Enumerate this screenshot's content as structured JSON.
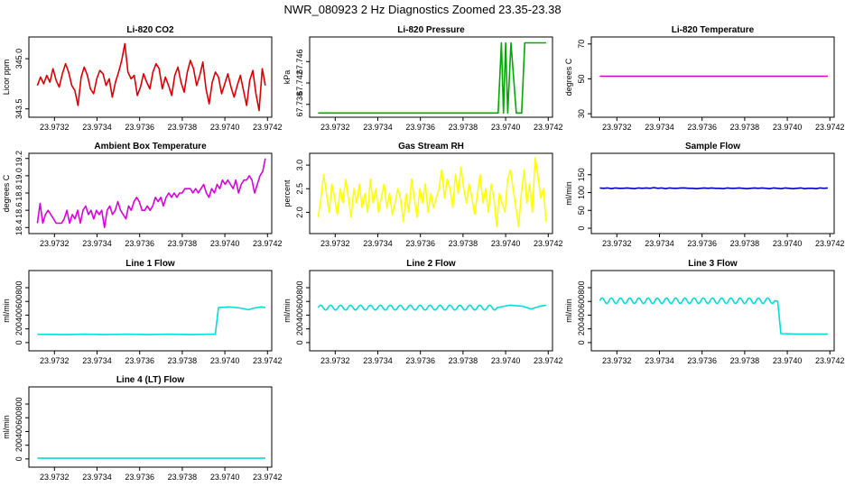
{
  "figure_title": "NWR_080923  2 Hz Diagnostics Zoomed 23.35-23.38",
  "chart_data": [
    {
      "type": "line",
      "title": "Li-820 CO2",
      "ylabel": "Licor ppm",
      "color": "#dd0000",
      "xlim": [
        23.97308,
        23.97422
      ],
      "x_ticks": [
        "23.9732",
        "23.9734",
        "23.9736",
        "23.9738",
        "23.9740",
        "23.9742"
      ],
      "ylim": [
        343.25,
        345.65
      ],
      "y_ticks": [
        "343.5",
        "345.0"
      ],
      "x_start": 23.97312,
      "x_end": 23.97419,
      "values": [
        344.2,
        344.45,
        344.25,
        344.5,
        344.3,
        344.7,
        344.35,
        344.15,
        344.55,
        344.85,
        344.6,
        344.2,
        344.05,
        343.6,
        344.45,
        344.75,
        344.5,
        344.1,
        343.95,
        344.4,
        344.65,
        344.55,
        344.2,
        344.4,
        343.85,
        344.3,
        344.6,
        344.95,
        345.45,
        344.6,
        344.4,
        344.5,
        343.9,
        344.15,
        344.55,
        344.3,
        344.1,
        344.6,
        344.85,
        344.7,
        344.1,
        344.45,
        344.2,
        343.9,
        344.5,
        344.75,
        344.3,
        344.0,
        344.6,
        344.95,
        344.7,
        344.2,
        344.5,
        344.9,
        344.1,
        343.65,
        344.3,
        344.6,
        344.45,
        343.95,
        344.25,
        344.55,
        344.15,
        343.85,
        344.2,
        344.5,
        344.05,
        343.6,
        344.35,
        344.65,
        343.95,
        343.45,
        344.7,
        344.2
      ]
    },
    {
      "type": "line",
      "title": "Li-820 Pressure",
      "ylabel": "kPa",
      "color": "#00aa00",
      "xlim": [
        23.97308,
        23.97422
      ],
      "x_ticks": [
        "23.9732",
        "23.9734",
        "23.9736",
        "23.9738",
        "23.9740",
        "23.9742"
      ],
      "ylim": [
        67.7356,
        67.7506
      ],
      "y_ticks": [
        "67.738",
        "67.742",
        "67.746"
      ],
      "points": [
        [
          23.97312,
          67.7364
        ],
        [
          23.973965,
          67.7364
        ],
        [
          23.97398,
          67.7495
        ],
        [
          23.97399,
          67.7364
        ],
        [
          23.974,
          67.7495
        ],
        [
          23.97401,
          67.7364
        ],
        [
          23.974025,
          67.7495
        ],
        [
          23.97405,
          67.7364
        ],
        [
          23.974075,
          67.7364
        ],
        [
          23.97409,
          67.7495
        ],
        [
          23.97419,
          67.7495
        ]
      ]
    },
    {
      "type": "line",
      "title": "Li-820 Temperature",
      "ylabel": "degrees C",
      "color": "#cc00cc",
      "xlim": [
        23.97308,
        23.97422
      ],
      "x_ticks": [
        "23.9732",
        "23.9734",
        "23.9736",
        "23.9738",
        "23.9740",
        "23.9742"
      ],
      "ylim": [
        28,
        74
      ],
      "y_ticks": [
        "30",
        "50",
        "70"
      ],
      "points": [
        [
          23.97312,
          51.5
        ],
        [
          23.97419,
          51.5
        ]
      ]
    },
    {
      "type": "line",
      "title": "Ambient Box Temperature",
      "ylabel": "degrees C",
      "color": "#dd00dd",
      "xlim": [
        23.97308,
        23.97422
      ],
      "x_ticks": [
        "23.9732",
        "23.9734",
        "23.9736",
        "23.9738",
        "23.9740",
        "23.9742"
      ],
      "ylim": [
        18.33,
        19.26
      ],
      "y_ticks": [
        "18.4",
        "18.6",
        "18.8",
        "19.0",
        "19.2"
      ],
      "x_start": 23.97312,
      "x_end": 23.97419,
      "values": [
        18.45,
        18.68,
        18.45,
        18.55,
        18.6,
        18.55,
        18.5,
        18.45,
        18.45,
        18.45,
        18.5,
        18.6,
        18.45,
        18.55,
        18.5,
        18.6,
        18.45,
        18.6,
        18.65,
        18.55,
        18.6,
        18.5,
        18.6,
        18.55,
        18.6,
        18.4,
        18.6,
        18.65,
        18.55,
        18.6,
        18.7,
        18.6,
        18.55,
        18.5,
        18.65,
        18.6,
        18.7,
        18.75,
        18.7,
        18.6,
        18.6,
        18.65,
        18.6,
        18.65,
        18.75,
        18.7,
        18.75,
        18.65,
        18.75,
        18.8,
        18.75,
        18.8,
        18.75,
        18.8,
        18.8,
        18.85,
        18.85,
        18.85,
        18.8,
        18.85,
        18.8,
        18.85,
        18.9,
        18.8,
        18.75,
        18.85,
        18.8,
        18.9,
        18.85,
        18.95,
        18.9,
        18.95,
        18.9,
        18.85,
        18.95,
        18.8,
        18.9,
        18.95,
        18.95,
        19.0,
        18.95,
        18.8,
        18.9,
        19.0,
        19.05,
        19.2
      ]
    },
    {
      "type": "line",
      "title": "Gas Stream RH",
      "ylabel": "percent",
      "color": "#ffff00",
      "xlim": [
        23.97308,
        23.97422
      ],
      "x_ticks": [
        "23.9732",
        "23.9734",
        "23.9736",
        "23.9738",
        "23.9740",
        "23.9742"
      ],
      "ylim": [
        1.55,
        3.25
      ],
      "y_ticks": [
        "2.0",
        "2.5",
        "3.0"
      ],
      "x_start": 23.97312,
      "x_end": 23.97419,
      "values": [
        1.9,
        2.3,
        2.8,
        2.4,
        2.0,
        2.6,
        2.3,
        1.95,
        2.5,
        2.2,
        2.7,
        2.3,
        1.9,
        2.5,
        2.2,
        2.6,
        2.1,
        2.4,
        2.0,
        2.7,
        2.2,
        2.5,
        2.0,
        2.3,
        2.6,
        2.1,
        2.4,
        1.95,
        2.2,
        2.5,
        2.3,
        1.8,
        2.4,
        2.0,
        2.7,
        2.3,
        1.9,
        2.5,
        2.2,
        2.6,
        2.0,
        2.4,
        2.1,
        2.3,
        2.5,
        2.9,
        2.3,
        2.7,
        2.5,
        2.1,
        2.8,
        2.4,
        2.95,
        2.5,
        2.2,
        2.6,
        2.3,
        1.95,
        2.4,
        2.8,
        2.2,
        2.5,
        2.0,
        2.6,
        2.3,
        1.7,
        2.4,
        2.2,
        2.0,
        2.7,
        2.9,
        2.5,
        2.1,
        1.7,
        2.4,
        2.9,
        2.2,
        2.6,
        2.0,
        3.15,
        2.8,
        2.3,
        2.5,
        1.8
      ]
    },
    {
      "type": "line",
      "title": "Sample Flow",
      "ylabel": "ml/min",
      "color": "#0000bb",
      "xlim": [
        23.97308,
        23.97422
      ],
      "x_ticks": [
        "23.9732",
        "23.9734",
        "23.9736",
        "23.9738",
        "23.9740",
        "23.9742"
      ],
      "ylim": [
        -15,
        210
      ],
      "y_ticks": [
        "0",
        "50",
        "100",
        "150"
      ],
      "x_start": 23.97312,
      "x_end": 23.97419,
      "values": [
        113,
        112,
        113,
        111,
        113,
        112,
        112,
        113,
        112,
        111,
        113,
        112,
        113,
        112,
        114,
        112,
        113,
        111,
        113,
        112,
        112,
        113,
        113,
        112,
        112,
        111,
        112,
        113,
        112,
        113,
        112,
        112,
        111,
        113,
        112,
        112,
        113,
        112,
        111,
        112,
        113,
        112,
        113,
        112,
        111,
        113,
        112,
        111,
        113,
        112,
        111,
        112,
        113,
        111,
        112,
        112,
        111,
        113,
        112,
        113
      ]
    },
    {
      "type": "line",
      "title": "Line 1 Flow",
      "ylabel": "ml/min",
      "color": "#00dddd",
      "xlim": [
        23.97308,
        23.97422
      ],
      "x_ticks": [
        "23.9732",
        "23.9734",
        "23.9736",
        "23.9738",
        "23.9740",
        "23.9742"
      ],
      "ylim": [
        -120,
        1050
      ],
      "y_ticks": [
        "0",
        "200",
        "400",
        "600",
        "800"
      ],
      "points": [
        [
          23.97312,
          120
        ],
        [
          23.97326,
          118
        ],
        [
          23.97334,
          122
        ],
        [
          23.97344,
          118
        ],
        [
          23.97354,
          122
        ],
        [
          23.97364,
          118
        ],
        [
          23.97374,
          122
        ],
        [
          23.97384,
          118
        ],
        [
          23.97394,
          122
        ],
        [
          23.973955,
          122
        ],
        [
          23.97397,
          510
        ],
        [
          23.97402,
          520
        ],
        [
          23.97407,
          505
        ],
        [
          23.97411,
          480
        ],
        [
          23.97414,
          505
        ],
        [
          23.97417,
          520
        ],
        [
          23.97419,
          510
        ]
      ]
    },
    {
      "type": "line",
      "title": "Line 2 Flow",
      "ylabel": "ml/min",
      "color": "#00dddd",
      "xlim": [
        23.97308,
        23.97422
      ],
      "x_ticks": [
        "23.9732",
        "23.9734",
        "23.9736",
        "23.9738",
        "23.9740",
        "23.9742"
      ],
      "ylim": [
        -120,
        1050
      ],
      "y_ticks": [
        "0",
        "200",
        "400",
        "600",
        "800"
      ],
      "wave": {
        "x_start": 23.97312,
        "x_end": 23.97396,
        "base": 510,
        "amplitude": 35,
        "cycles": 18
      },
      "tail": [
        [
          23.97396,
          510
        ],
        [
          23.97402,
          545
        ],
        [
          23.97408,
          530
        ],
        [
          23.97412,
          490
        ],
        [
          23.97416,
          530
        ],
        [
          23.97419,
          545
        ]
      ]
    },
    {
      "type": "line",
      "title": "Line 3 Flow",
      "ylabel": "ml/min",
      "color": "#00dddd",
      "xlim": [
        23.97308,
        23.97422
      ],
      "x_ticks": [
        "23.9732",
        "23.9734",
        "23.9736",
        "23.9738",
        "23.9740",
        "23.9742"
      ],
      "ylim": [
        -120,
        1050
      ],
      "y_ticks": [
        "0",
        "200",
        "400",
        "600",
        "800"
      ],
      "wave": {
        "x_start": 23.97312,
        "x_end": 23.97394,
        "base": 610,
        "amplitude": 40,
        "cycles": 19
      },
      "tail": [
        [
          23.97394,
          610
        ],
        [
          23.973955,
          600
        ],
        [
          23.97397,
          130
        ],
        [
          23.97405,
          125
        ],
        [
          23.97419,
          125
        ]
      ]
    },
    {
      "type": "line",
      "title": "Line 4 (LT) Flow",
      "ylabel": "ml/min",
      "color": "#00dddd",
      "xlim": [
        23.97308,
        23.97422
      ],
      "x_ticks": [
        "23.9732",
        "23.9734",
        "23.9736",
        "23.9738",
        "23.9740",
        "23.9742"
      ],
      "ylim": [
        -120,
        1050
      ],
      "y_ticks": [
        "0",
        "200",
        "400",
        "600",
        "800"
      ],
      "points": [
        [
          23.97312,
          10
        ],
        [
          23.97419,
          10
        ]
      ]
    }
  ]
}
